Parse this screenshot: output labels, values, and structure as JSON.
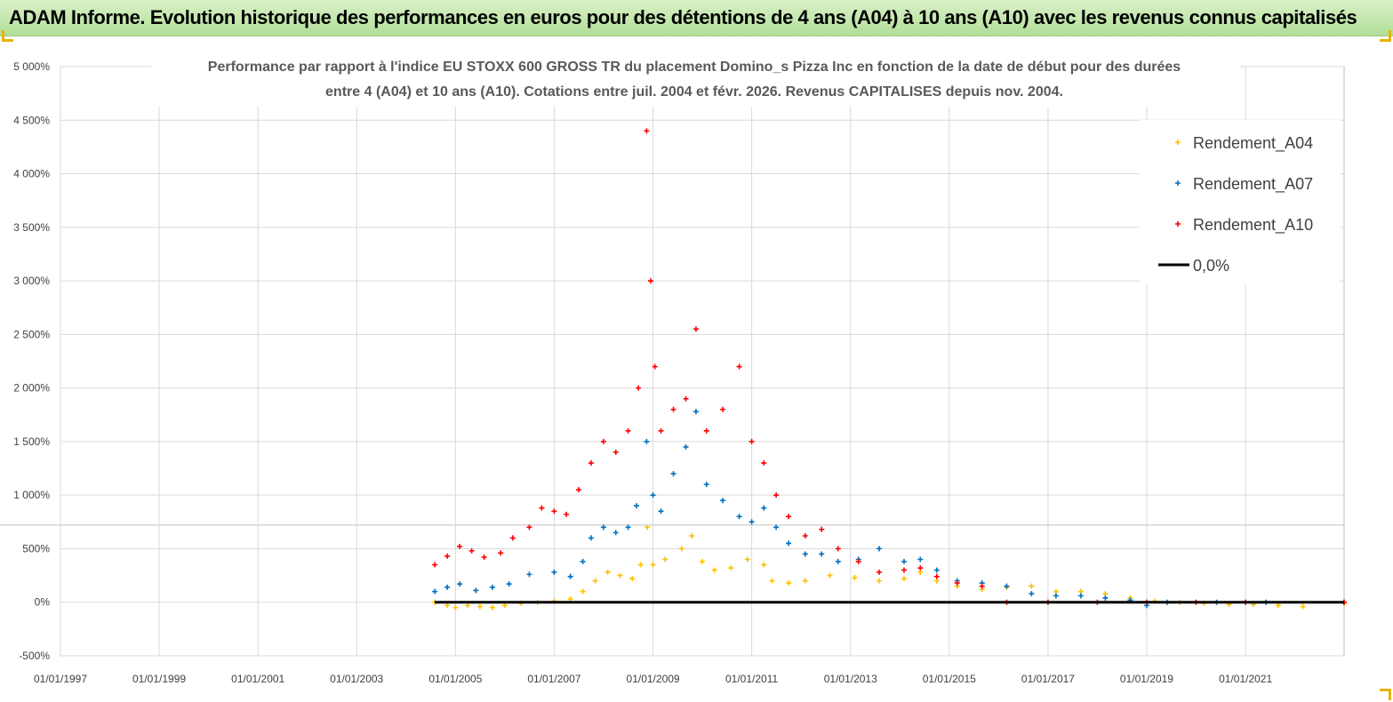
{
  "banner": {
    "title": "ADAM Informe. Evolution historique des performances en euros pour des détentions de 4 ans (A04) à 10 ans (A10) avec les revenus connus capitalisés"
  },
  "colors": {
    "banner_bg": "#c6e8b0",
    "a04": "#ffc000",
    "a07": "#0070c0",
    "a10": "#ff0000",
    "zero": "#000000",
    "grid": "#d9d9d9"
  },
  "chart_data": {
    "type": "scatter",
    "title_line1": "Performance par rapport à l'indice EU STOXX 600 GROSS TR  du placement Domino_s Pizza Inc en fonction de la date de début pour des durées",
    "title_line2": "entre 4 (A04) et 10 ans (A10). Cotations entre juil. 2004 et févr. 2026. Revenus CAPITALISES depuis nov. 2004.",
    "xlabel": "",
    "ylabel": "",
    "x_range": [
      "1997-01-01",
      "2022-12-31"
    ],
    "ylim": [
      -500,
      5000
    ],
    "y_ticks": [
      "-500%",
      "0%",
      "500%",
      "1 000%",
      "1 500%",
      "2 000%",
      "2 500%",
      "3 000%",
      "3 500%",
      "4 000%",
      "4 500%",
      "5 000%"
    ],
    "x_ticks": [
      "01/01/1997",
      "01/01/1999",
      "01/01/2001",
      "01/01/2003",
      "01/01/2005",
      "01/01/2007",
      "01/01/2009",
      "01/01/2011",
      "01/01/2013",
      "01/01/2015",
      "01/01/2017",
      "01/01/2019",
      "01/01/2021"
    ],
    "grid": true,
    "legend_position": "top-right",
    "series": [
      {
        "name": "Rendement_A04",
        "marker": "+",
        "color": "#ffc000",
        "points": [
          [
            "2004-08-01",
            0
          ],
          [
            "2004-11-01",
            -30
          ],
          [
            "2005-01-01",
            -50
          ],
          [
            "2005-04-01",
            -30
          ],
          [
            "2005-07-01",
            -40
          ],
          [
            "2005-10-01",
            -50
          ],
          [
            "2006-01-01",
            -30
          ],
          [
            "2006-05-01",
            -10
          ],
          [
            "2006-09-01",
            0
          ],
          [
            "2007-01-01",
            10
          ],
          [
            "2007-05-01",
            30
          ],
          [
            "2007-08-01",
            100
          ],
          [
            "2007-11-01",
            200
          ],
          [
            "2008-02-01",
            280
          ],
          [
            "2008-05-01",
            250
          ],
          [
            "2008-08-01",
            220
          ],
          [
            "2008-10-01",
            350
          ],
          [
            "2008-11-20",
            700
          ],
          [
            "2009-01-01",
            350
          ],
          [
            "2009-04-01",
            400
          ],
          [
            "2009-08-01",
            500
          ],
          [
            "2009-10-15",
            620
          ],
          [
            "2010-01-01",
            380
          ],
          [
            "2010-04-01",
            300
          ],
          [
            "2010-08-01",
            320
          ],
          [
            "2010-12-01",
            400
          ],
          [
            "2011-04-01",
            350
          ],
          [
            "2011-06-01",
            200
          ],
          [
            "2011-10-01",
            180
          ],
          [
            "2012-02-01",
            200
          ],
          [
            "2012-08-01",
            250
          ],
          [
            "2013-02-01",
            230
          ],
          [
            "2013-08-01",
            200
          ],
          [
            "2014-02-01",
            220
          ],
          [
            "2014-06-01",
            280
          ],
          [
            "2014-10-01",
            200
          ],
          [
            "2015-03-01",
            150
          ],
          [
            "2015-09-01",
            120
          ],
          [
            "2016-03-01",
            140
          ],
          [
            "2016-09-01",
            150
          ],
          [
            "2017-03-01",
            100
          ],
          [
            "2017-09-01",
            100
          ],
          [
            "2018-03-01",
            80
          ],
          [
            "2018-09-01",
            40
          ],
          [
            "2019-03-01",
            10
          ],
          [
            "2019-09-01",
            0
          ],
          [
            "2020-03-01",
            -10
          ],
          [
            "2020-09-01",
            -20
          ],
          [
            "2021-03-01",
            -20
          ],
          [
            "2021-09-01",
            -30
          ],
          [
            "2022-03-01",
            -40
          ],
          [
            "2022-12-31",
            -10
          ]
        ]
      },
      {
        "name": "Rendement_A07",
        "marker": "+",
        "color": "#0070c0",
        "points": [
          [
            "2004-08-01",
            100
          ],
          [
            "2004-11-01",
            140
          ],
          [
            "2005-02-01",
            170
          ],
          [
            "2005-06-01",
            110
          ],
          [
            "2005-10-01",
            140
          ],
          [
            "2006-02-01",
            170
          ],
          [
            "2006-07-01",
            260
          ],
          [
            "2007-01-01",
            280
          ],
          [
            "2007-05-01",
            240
          ],
          [
            "2007-08-01",
            380
          ],
          [
            "2007-10-01",
            600
          ],
          [
            "2008-01-01",
            700
          ],
          [
            "2008-04-01",
            650
          ],
          [
            "2008-07-01",
            700
          ],
          [
            "2008-09-01",
            900
          ],
          [
            "2008-11-15",
            1500
          ],
          [
            "2009-01-01",
            1000
          ],
          [
            "2009-03-01",
            850
          ],
          [
            "2009-06-01",
            1200
          ],
          [
            "2009-09-01",
            1450
          ],
          [
            "2009-11-15",
            1780
          ],
          [
            "2010-02-01",
            1100
          ],
          [
            "2010-06-01",
            950
          ],
          [
            "2010-10-01",
            800
          ],
          [
            "2011-01-01",
            750
          ],
          [
            "2011-04-01",
            880
          ],
          [
            "2011-07-01",
            700
          ],
          [
            "2011-10-01",
            550
          ],
          [
            "2012-02-01",
            450
          ],
          [
            "2012-06-01",
            450
          ],
          [
            "2012-10-01",
            380
          ],
          [
            "2013-03-01",
            400
          ],
          [
            "2013-08-01",
            500
          ],
          [
            "2014-02-01",
            380
          ],
          [
            "2014-06-01",
            400
          ],
          [
            "2014-10-01",
            300
          ],
          [
            "2015-03-01",
            200
          ],
          [
            "2015-09-01",
            180
          ],
          [
            "2016-03-01",
            150
          ],
          [
            "2016-09-01",
            80
          ],
          [
            "2017-03-01",
            60
          ],
          [
            "2017-09-01",
            60
          ],
          [
            "2018-03-01",
            40
          ],
          [
            "2018-09-01",
            20
          ],
          [
            "2019-01-01",
            -30
          ],
          [
            "2019-06-01",
            0
          ],
          [
            "2020-06-01",
            0
          ],
          [
            "2021-06-01",
            0
          ],
          [
            "2022-12-31",
            0
          ]
        ]
      },
      {
        "name": "Rendement_A10",
        "marker": "+",
        "color": "#ff0000",
        "points": [
          [
            "2004-08-01",
            350
          ],
          [
            "2004-11-01",
            430
          ],
          [
            "2005-02-01",
            520
          ],
          [
            "2005-05-01",
            480
          ],
          [
            "2005-08-01",
            420
          ],
          [
            "2005-12-01",
            460
          ],
          [
            "2006-03-01",
            600
          ],
          [
            "2006-07-01",
            700
          ],
          [
            "2006-10-01",
            880
          ],
          [
            "2007-01-01",
            850
          ],
          [
            "2007-04-01",
            820
          ],
          [
            "2007-07-01",
            1050
          ],
          [
            "2007-10-01",
            1300
          ],
          [
            "2008-01-01",
            1500
          ],
          [
            "2008-04-01",
            1400
          ],
          [
            "2008-07-01",
            1600
          ],
          [
            "2008-09-15",
            2000
          ],
          [
            "2008-11-15",
            4400
          ],
          [
            "2008-12-15",
            3000
          ],
          [
            "2009-01-15",
            2200
          ],
          [
            "2009-03-01",
            1600
          ],
          [
            "2009-06-01",
            1800
          ],
          [
            "2009-09-01",
            1900
          ],
          [
            "2009-11-15",
            2550
          ],
          [
            "2010-02-01",
            1600
          ],
          [
            "2010-06-01",
            1800
          ],
          [
            "2010-10-01",
            2200
          ],
          [
            "2011-01-01",
            1500
          ],
          [
            "2011-04-01",
            1300
          ],
          [
            "2011-07-01",
            1000
          ],
          [
            "2011-10-01",
            800
          ],
          [
            "2012-02-01",
            620
          ],
          [
            "2012-06-01",
            680
          ],
          [
            "2012-10-01",
            500
          ],
          [
            "2013-03-01",
            380
          ],
          [
            "2013-08-01",
            280
          ],
          [
            "2014-02-01",
            300
          ],
          [
            "2014-06-01",
            320
          ],
          [
            "2014-10-01",
            240
          ],
          [
            "2015-03-01",
            180
          ],
          [
            "2015-09-01",
            150
          ],
          [
            "2016-03-01",
            0
          ],
          [
            "2017-01-01",
            0
          ],
          [
            "2018-01-01",
            0
          ],
          [
            "2019-01-01",
            0
          ],
          [
            "2020-01-01",
            0
          ],
          [
            "2021-01-01",
            0
          ],
          [
            "2022-12-31",
            0
          ]
        ]
      },
      {
        "name": "0,0%",
        "marker": "line",
        "color": "#000000",
        "points": [
          [
            "2004-08-01",
            0
          ],
          [
            "2022-12-31",
            0
          ]
        ]
      }
    ]
  }
}
